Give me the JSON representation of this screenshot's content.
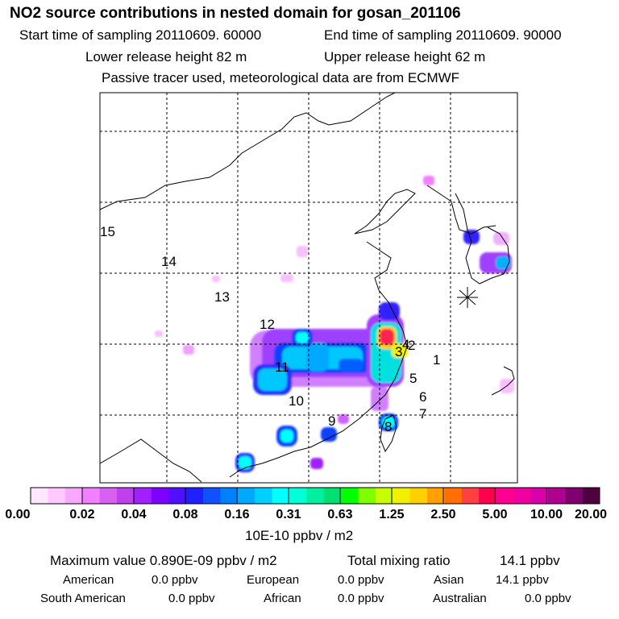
{
  "title": "NO2 source contributions in nested domain for gosan_201106",
  "sampling": {
    "start": "Start time of sampling 20110609. 60000",
    "end": "End time of sampling 20110609. 90000"
  },
  "release": {
    "lower": "Lower release height   82 m",
    "upper": "Upper release height   62 m"
  },
  "note": "Passive tracer used, meteorological data are from ECMWF",
  "region_labels": [
    "1",
    "2",
    "3",
    "4",
    "5",
    "6",
    "7",
    "8",
    "9",
    "10",
    "11",
    "12",
    "13",
    "14",
    "15"
  ],
  "receptor_marker": "gosan-receptor-star-icon",
  "colorbar": {
    "colors": [
      "#ffe8ff",
      "#ffc8ff",
      "#f8a8ff",
      "#f080ff",
      "#d860f0",
      "#c040f0",
      "#a020ff",
      "#8000ff",
      "#5010ff",
      "#2020ff",
      "#1050ff",
      "#0080ff",
      "#00a8ff",
      "#00d0ff",
      "#00ffff",
      "#00ffd8",
      "#00f0a0",
      "#00e070",
      "#00ff00",
      "#80ff00",
      "#c8ff00",
      "#f0f000",
      "#ffd000",
      "#ffa000",
      "#ff7000",
      "#ff4040",
      "#ff0050",
      "#ff0090",
      "#f000a0",
      "#d800a8",
      "#b00090",
      "#800070",
      "#500040"
    ],
    "ticks": [
      "0.00",
      "0.02",
      "0.04",
      "0.08",
      "0.16",
      "0.31",
      "0.63",
      "1.25",
      "2.50",
      "5.00",
      "10.00",
      "20.00"
    ],
    "unit": "10E-10 ppbv / m2"
  },
  "summary": {
    "max_label": "Maximum value  0.890E-09 ppbv / m2",
    "total_label": "Total mixing ratio",
    "total_value": "14.1 ppbv"
  },
  "contributions": {
    "american_label": "American",
    "american_value": "0.0 ppbv",
    "european_label": "European",
    "european_value": "0.0 ppbv",
    "asian_label": "Asian",
    "asian_value": "14.1 ppbv",
    "south_american_label": "South American",
    "south_american_value": "0.0 ppbv",
    "african_label": "African",
    "african_value": "0.0 ppbv",
    "australian_label": "Australian",
    "australian_value": "0.0 ppbv"
  }
}
